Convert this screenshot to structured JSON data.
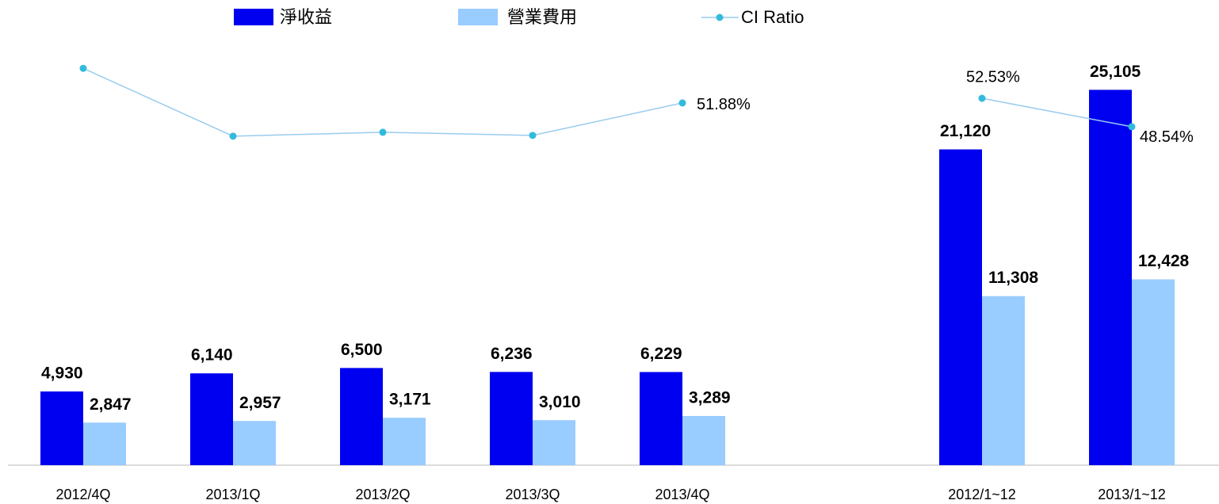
{
  "chart_data": {
    "type": "bar",
    "categories": [
      "2012/4Q",
      "2013/1Q",
      "2013/2Q",
      "2013/3Q",
      "2013/4Q",
      null,
      "2012/1~12",
      "2013/1~12"
    ],
    "ylim": [
      0,
      30000
    ],
    "y2lim": [
      1,
      64
    ],
    "series": [
      {
        "name": "淨收益",
        "color": "#0000f0",
        "values": [
          4930,
          6140,
          6500,
          6236,
          6229,
          null,
          21120,
          25105
        ],
        "value_labels": [
          "4,930",
          "6,140",
          "6,500",
          "6,236",
          "6,229",
          null,
          "21,120",
          "25,105"
        ]
      },
      {
        "name": "營業費用",
        "color": "#99ccff",
        "values": [
          2847,
          2957,
          3171,
          3010,
          3289,
          null,
          11308,
          12428
        ],
        "value_labels": [
          "2,847",
          "2,957",
          "3,171",
          "3,010",
          "3,289",
          null,
          "11,308",
          "12,428"
        ]
      },
      {
        "name": "CI Ratio",
        "type": "line",
        "axis": "y2",
        "color": "#99ccee",
        "marker_color": "#33bbdd",
        "values": [
          56.74,
          47.21,
          47.76,
          47.32,
          51.88,
          null,
          52.53,
          48.54
        ],
        "value_labels": [
          null,
          null,
          null,
          null,
          "51.88%",
          null,
          "52.53%",
          "48.54%"
        ]
      }
    ]
  }
}
